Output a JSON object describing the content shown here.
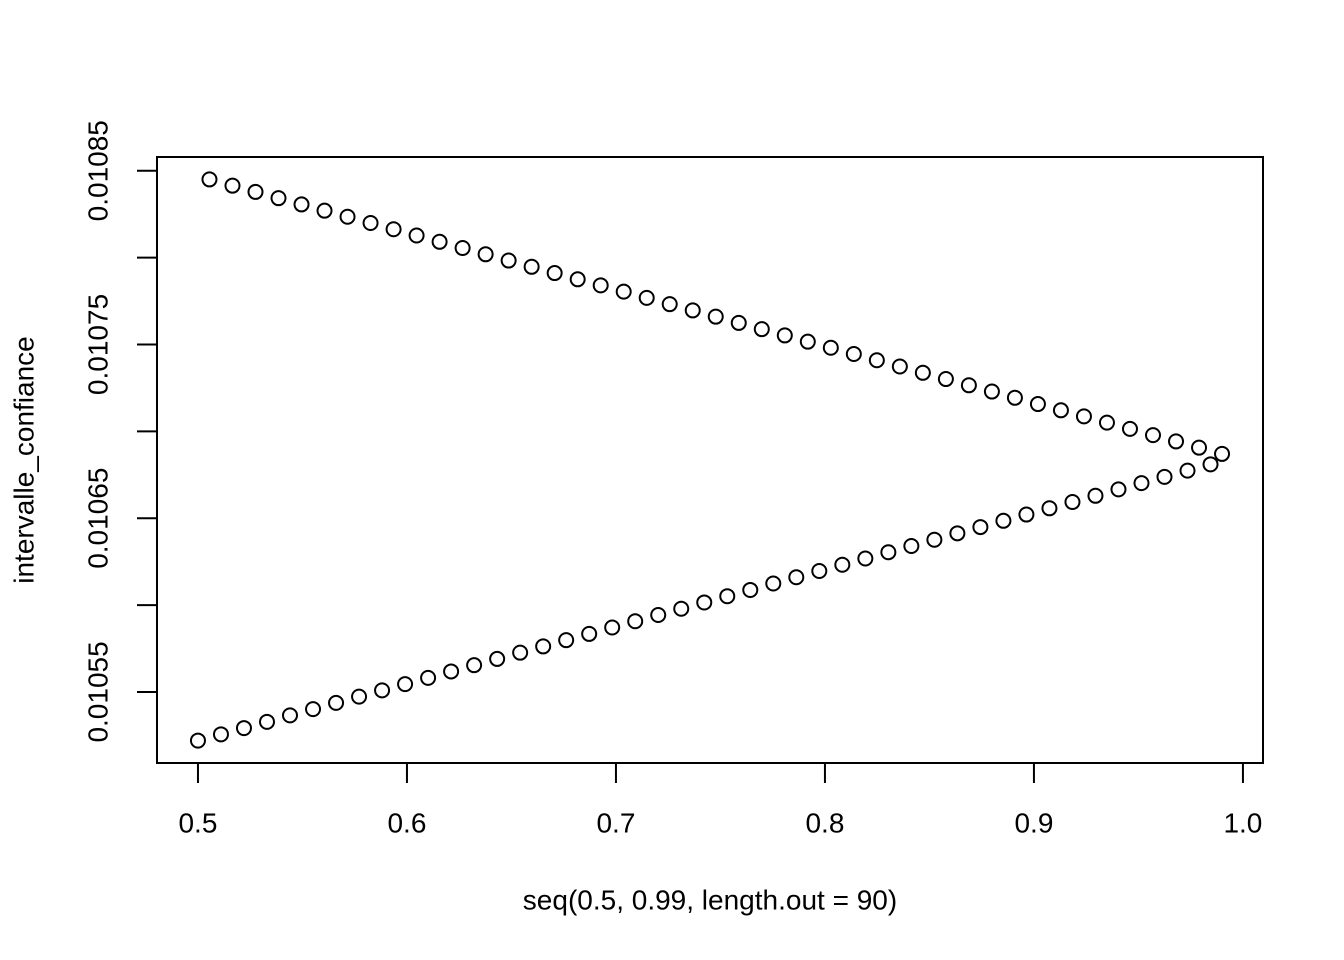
{
  "chart_data": {
    "type": "scatter",
    "xlabel": "seq(0.5, 0.99, length.out = 90)",
    "ylabel": "intervalle_confiance",
    "x": [
      0.5,
      0.50551,
      0.51101,
      0.51652,
      0.52202,
      0.52753,
      0.53303,
      0.53854,
      0.54404,
      0.54955,
      0.55506,
      0.56056,
      0.56607,
      0.57157,
      0.57708,
      0.58258,
      0.58809,
      0.5936,
      0.5991,
      0.60461,
      0.61011,
      0.61562,
      0.62112,
      0.62663,
      0.63213,
      0.63764,
      0.64315,
      0.64865,
      0.65416,
      0.65966,
      0.66517,
      0.67067,
      0.67618,
      0.68169,
      0.68719,
      0.6927,
      0.6982,
      0.70371,
      0.70921,
      0.71472,
      0.72022,
      0.72573,
      0.73124,
      0.73674,
      0.74225,
      0.74775,
      0.75326,
      0.75876,
      0.76427,
      0.76978,
      0.77528,
      0.78079,
      0.78629,
      0.7918,
      0.7973,
      0.80281,
      0.80831,
      0.81382,
      0.81933,
      0.82483,
      0.83034,
      0.83584,
      0.84135,
      0.84685,
      0.85236,
      0.85787,
      0.86337,
      0.86888,
      0.87438,
      0.87989,
      0.88539,
      0.8909,
      0.8964,
      0.90191,
      0.90742,
      0.91292,
      0.91843,
      0.92393,
      0.92944,
      0.93494,
      0.94045,
      0.94596,
      0.95146,
      0.95697,
      0.96247,
      0.96798,
      0.97348,
      0.97899,
      0.98449,
      0.99
    ],
    "values": [
      0.010522,
      0.010845,
      0.0105256,
      0.0108414,
      0.0105292,
      0.0108378,
      0.0105328,
      0.0108342,
      0.0105365,
      0.0108306,
      0.0105401,
      0.010827,
      0.0105437,
      0.0108235,
      0.0105473,
      0.0108199,
      0.0105509,
      0.0108163,
      0.0105545,
      0.0108127,
      0.0105581,
      0.0108091,
      0.0105618,
      0.0108055,
      0.0105654,
      0.0108019,
      0.010569,
      0.0107983,
      0.0105726,
      0.0107947,
      0.0105762,
      0.0107911,
      0.0105798,
      0.0107875,
      0.0105834,
      0.010784,
      0.0105871,
      0.0107804,
      0.0105907,
      0.0107768,
      0.0105943,
      0.0107732,
      0.0105979,
      0.0107696,
      0.0106015,
      0.010766,
      0.0106051,
      0.0107624,
      0.0106087,
      0.0107588,
      0.0106124,
      0.0107552,
      0.010616,
      0.0107516,
      0.0106196,
      0.0107481,
      0.0106232,
      0.0107445,
      0.0106268,
      0.0107409,
      0.0106304,
      0.0107373,
      0.010634,
      0.0107337,
      0.0106376,
      0.0107301,
      0.0106413,
      0.0107265,
      0.0106449,
      0.0107229,
      0.0106485,
      0.0107193,
      0.0106521,
      0.0107157,
      0.0106557,
      0.0107121,
      0.0106593,
      0.0107086,
      0.0106629,
      0.010705,
      0.0106666,
      0.0107014,
      0.0106702,
      0.0106978,
      0.0106738,
      0.0106942,
      0.0106774,
      0.0106906,
      0.010681,
      0.010687
    ],
    "color": "#000000",
    "xlim": [
      0.4804,
      1.0096
    ],
    "xticks": [
      0.5,
      0.6,
      0.7,
      0.8,
      0.9,
      {
        "value": 1.0,
        "label": "1.0"
      }
    ],
    "ylim": [
      0.0105091,
      0.0108579
    ],
    "yticks": [
      0.01055,
      {
        "value": 0.0106,
        "label": null
      },
      0.01065,
      {
        "value": 0.0107,
        "label": null
      },
      0.01075,
      {
        "value": 0.0108,
        "label": null
      },
      0.01085
    ]
  }
}
